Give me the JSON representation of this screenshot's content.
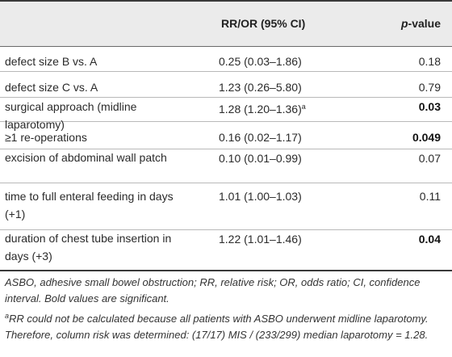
{
  "header": {
    "col_rr": "RR/OR (95% CI)",
    "col_p_italic": "p",
    "col_p_rest": "-value"
  },
  "rows": [
    {
      "label": "defect size B vs. A",
      "rr": "0.25 (0.03–1.86)",
      "sup": "",
      "p": "0.18",
      "bold": false
    },
    {
      "label": "defect size C vs. A",
      "rr": "1.23 (0.26–5.80)",
      "sup": "",
      "p": "0.79",
      "bold": false
    },
    {
      "label": "surgical approach (midline laparotomy)",
      "rr": "1.28 (1.20–1.36)",
      "sup": "a",
      "p": "0.03",
      "bold": true
    },
    {
      "label": "≥1 re-operations",
      "rr": "0.16 (0.02–1.17)",
      "sup": "",
      "p": "0.049",
      "bold": true
    },
    {
      "label": "excision of abdominal wall patch",
      "rr": "0.10 (0.01–0.99)",
      "sup": "",
      "p": "0.07",
      "bold": false
    },
    {
      "label": "time to full enteral feeding in days (+1)",
      "rr": "1.01 (1.00–1.03)",
      "sup": "",
      "p": "0.11",
      "bold": false
    },
    {
      "label": "duration of chest tube insertion in days (+3)",
      "rr": "1.22 (1.01–1.46)",
      "sup": "",
      "p": "0.04",
      "bold": true
    }
  ],
  "notes": {
    "abbrev": "ASBO, adhesive small bowel obstruction; RR, relative risk; OR, odds ratio; CI, confidence interval. Bold values are significant.",
    "footnote_mark": "a",
    "footnote": "RR could not be calculated because all patients with ASBO underwent midline laparotomy. Therefore, column risk was determined: (17/17) MIS / (233/299) median laparotomy = 1.28."
  }
}
